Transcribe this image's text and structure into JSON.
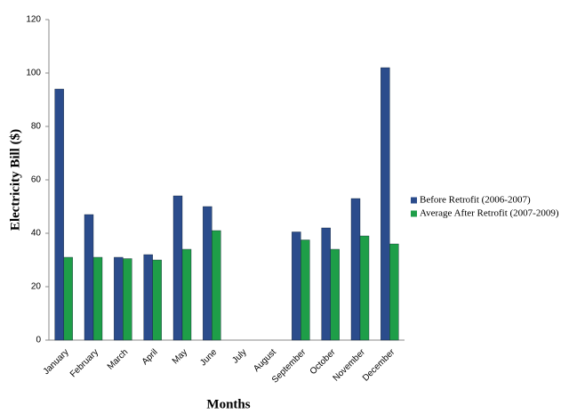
{
  "chart_data": {
    "type": "bar",
    "x_label": "Months",
    "y_label": "Electricity Bill ($)",
    "categories": [
      "January",
      "February",
      "March",
      "April",
      "May",
      "June",
      "July",
      "August",
      "September",
      "October",
      "November",
      "December"
    ],
    "series": [
      {
        "name": "Before Retrofit (2006-2007)",
        "color": "#2b4c8c",
        "values": [
          94,
          47,
          31,
          32,
          54,
          50,
          null,
          null,
          40.5,
          42,
          53,
          102
        ]
      },
      {
        "name": "Average After Retrofit (2007-2009)",
        "color": "#1e9e48",
        "values": [
          31,
          31,
          30.5,
          30,
          34,
          41,
          null,
          null,
          37.5,
          34,
          39,
          36
        ]
      }
    ],
    "ylim": [
      0,
      120
    ],
    "yticks": [
      0,
      20,
      40,
      60,
      80,
      100,
      120
    ],
    "grid": false,
    "legend": "right"
  }
}
